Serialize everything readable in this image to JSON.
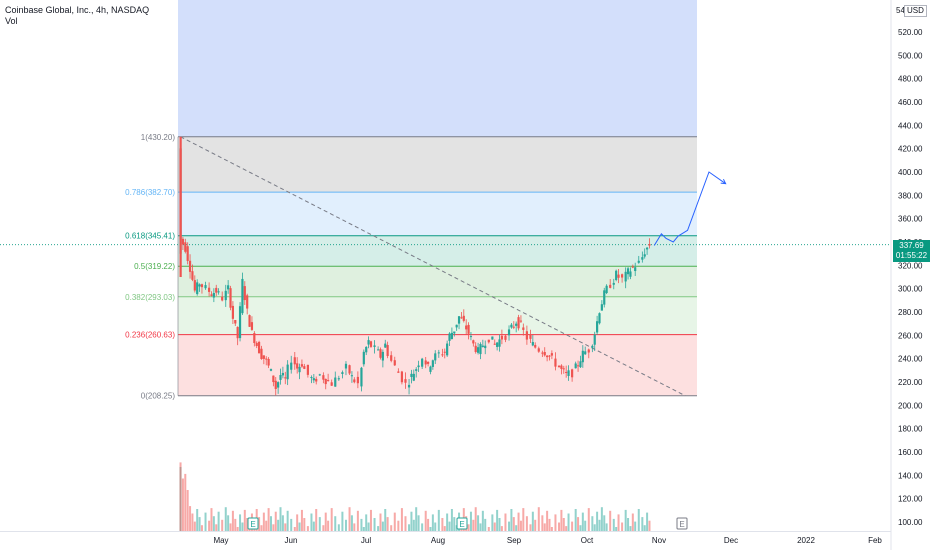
{
  "header": {
    "symbol_line": "Coinbase Global, Inc., 4h, NASDAQ",
    "volume_label": "Vol"
  },
  "price_scale": {
    "currency_label": "USD",
    "clipped_label": "54",
    "last_price": "337.69",
    "countdown": "01:55:22"
  },
  "colors": {
    "up": "#26a69a",
    "down": "#ef5350",
    "last_price_tag": "#089981",
    "forecast_arrow": "#2962ff"
  },
  "chart_data": {
    "type": "candlestick",
    "y_axis": {
      "range": [
        90,
        550
      ],
      "tick_labels": [
        "100.00",
        "120.00",
        "140.00",
        "160.00",
        "180.00",
        "200.00",
        "220.00",
        "240.00",
        "260.00",
        "280.00",
        "300.00",
        "320.00",
        "340.00",
        "360.00",
        "380.00",
        "400.00",
        "420.00",
        "440.00",
        "460.00",
        "480.00",
        "500.00",
        "520.00"
      ]
    },
    "x_axis": {
      "tick_labels": [
        "May",
        "Jun",
        "Jul",
        "Aug",
        "Sep",
        "Oct",
        "Nov",
        "Dec",
        "2022",
        "Feb"
      ]
    },
    "grid": false,
    "fibonacci_levels": [
      {
        "ratio": "1",
        "price": 430.2,
        "label": "1(430.20)",
        "line_color": "#787b86",
        "fill": "#e3e3e3"
      },
      {
        "ratio": "0.786",
        "price": 382.7,
        "label": "0.786(382.70)",
        "line_color": "#64b5f6",
        "fill": "#e1effd"
      },
      {
        "ratio": "0.618",
        "price": 345.41,
        "label": "0.618(345.41)",
        "line_color": "#089981",
        "fill": "#d5eee8"
      },
      {
        "ratio": "0.5",
        "price": 319.22,
        "label": "0.5(319.22)",
        "line_color": "#4caf50",
        "fill": "#dff0df"
      },
      {
        "ratio": "0.382",
        "price": 293.03,
        "label": "0.382(293.03)",
        "line_color": "#81c784",
        "fill": "#e7f5e7"
      },
      {
        "ratio": "0.236",
        "price": 260.63,
        "label": "0.236(260.63)",
        "line_color": "#f23645",
        "fill": "#fde0e0"
      },
      {
        "ratio": "0",
        "price": 208.25,
        "label": "0(208.25)",
        "line_color": "#787b86",
        "fill": null
      }
    ],
    "fib_extension_above": {
      "fill": "#d3dffb"
    },
    "price_path": [
      [
        "2021-04-14",
        330
      ],
      [
        "2021-04-14",
        420
      ],
      [
        "2021-04-15",
        342
      ],
      [
        "2021-04-17",
        335
      ],
      [
        "2021-04-19",
        318
      ],
      [
        "2021-04-21",
        298
      ],
      [
        "2021-04-23",
        305
      ],
      [
        "2021-04-26",
        300
      ],
      [
        "2021-04-28",
        296
      ],
      [
        "2021-04-30",
        298
      ],
      [
        "2021-05-03",
        292
      ],
      [
        "2021-05-05",
        300
      ],
      [
        "2021-05-07",
        275
      ],
      [
        "2021-05-09",
        258
      ],
      [
        "2021-05-11",
        306
      ],
      [
        "2021-05-13",
        280
      ],
      [
        "2021-05-15",
        262
      ],
      [
        "2021-05-17",
        252
      ],
      [
        "2021-05-19",
        243
      ],
      [
        "2021-05-21",
        238
      ],
      [
        "2021-05-23",
        228
      ],
      [
        "2021-05-25",
        215
      ],
      [
        "2021-05-27",
        226
      ],
      [
        "2021-05-29",
        222
      ],
      [
        "2021-06-01",
        240
      ],
      [
        "2021-06-03",
        232
      ],
      [
        "2021-06-05",
        236
      ],
      [
        "2021-06-08",
        226
      ],
      [
        "2021-06-10",
        220
      ],
      [
        "2021-06-13",
        226
      ],
      [
        "2021-06-15",
        222
      ],
      [
        "2021-06-18",
        219
      ],
      [
        "2021-06-21",
        225
      ],
      [
        "2021-06-24",
        232
      ],
      [
        "2021-06-26",
        224
      ],
      [
        "2021-06-29",
        218
      ],
      [
        "2021-07-01",
        245
      ],
      [
        "2021-07-03",
        254
      ],
      [
        "2021-07-06",
        248
      ],
      [
        "2021-07-08",
        242
      ],
      [
        "2021-07-10",
        252
      ],
      [
        "2021-07-13",
        238
      ],
      [
        "2021-07-16",
        228
      ],
      [
        "2021-07-19",
        218
      ],
      [
        "2021-07-21",
        225
      ],
      [
        "2021-07-23",
        232
      ],
      [
        "2021-07-26",
        242
      ],
      [
        "2021-07-28",
        232
      ],
      [
        "2021-07-30",
        240
      ],
      [
        "2021-08-02",
        244
      ],
      [
        "2021-08-04",
        246
      ],
      [
        "2021-08-06",
        260
      ],
      [
        "2021-08-08",
        265
      ],
      [
        "2021-08-10",
        276
      ],
      [
        "2021-08-12",
        270
      ],
      [
        "2021-08-14",
        262
      ],
      [
        "2021-08-16",
        252
      ],
      [
        "2021-08-18",
        246
      ],
      [
        "2021-08-20",
        252
      ],
      [
        "2021-08-23",
        258
      ],
      [
        "2021-08-25",
        252
      ],
      [
        "2021-08-27",
        256
      ],
      [
        "2021-08-30",
        260
      ],
      [
        "2021-09-01",
        266
      ],
      [
        "2021-09-03",
        272
      ],
      [
        "2021-09-05",
        268
      ],
      [
        "2021-09-08",
        258
      ],
      [
        "2021-09-10",
        252
      ],
      [
        "2021-09-13",
        248
      ],
      [
        "2021-09-15",
        246
      ],
      [
        "2021-09-17",
        242
      ],
      [
        "2021-09-20",
        236
      ],
      [
        "2021-09-22",
        230
      ],
      [
        "2021-09-24",
        226
      ],
      [
        "2021-09-27",
        228
      ],
      [
        "2021-09-29",
        236
      ],
      [
        "2021-10-01",
        244
      ],
      [
        "2021-10-04",
        248
      ],
      [
        "2021-10-06",
        262
      ],
      [
        "2021-10-08",
        282
      ],
      [
        "2021-10-10",
        295
      ],
      [
        "2021-10-13",
        304
      ],
      [
        "2021-10-15",
        312
      ],
      [
        "2021-10-18",
        308
      ],
      [
        "2021-10-20",
        314
      ],
      [
        "2021-10-22",
        318
      ],
      [
        "2021-10-25",
        322
      ],
      [
        "2021-10-27",
        332
      ],
      [
        "2021-10-29",
        337.69
      ]
    ],
    "forecast_path": [
      [
        "2021-10-30",
        337
      ],
      [
        "2021-11-02",
        347
      ],
      [
        "2021-11-04",
        343
      ],
      [
        "2021-11-07",
        340
      ],
      [
        "2021-11-09",
        345
      ],
      [
        "2021-11-13",
        350
      ],
      [
        "2021-11-22",
        400
      ],
      [
        "2021-11-29",
        390
      ]
    ],
    "trend_line": [
      [
        "2021-04-14",
        430.2
      ],
      [
        "2021-11-12",
        208.25
      ]
    ],
    "earnings_markers": [
      "E",
      "E",
      "E"
    ],
    "volume_series_name": "Vol"
  }
}
